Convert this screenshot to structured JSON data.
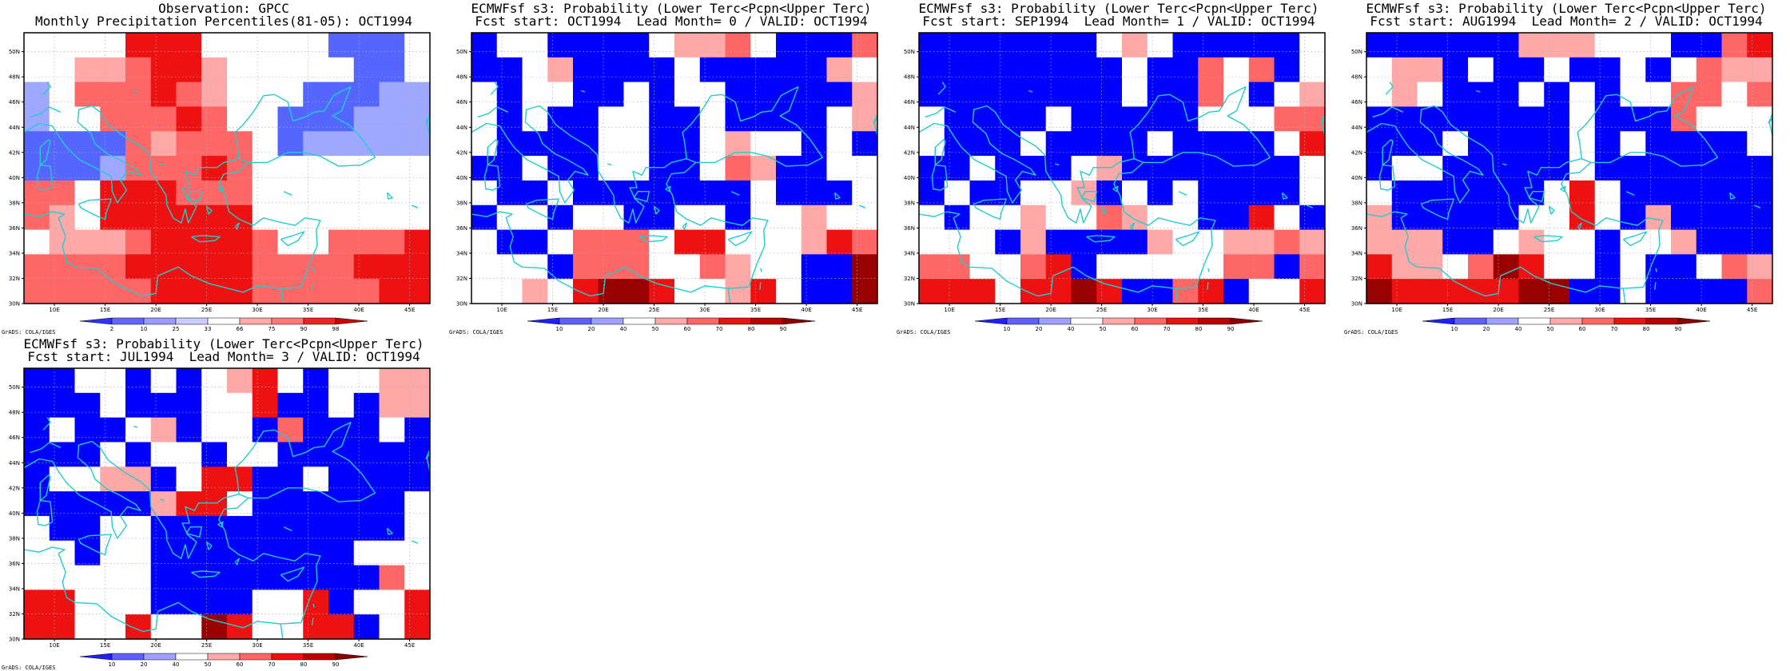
{
  "credit": "GrADS: COLA/IGES",
  "lon_labels": [
    "10E",
    "15E",
    "20E",
    "25E",
    "30E",
    "35E",
    "40E",
    "45E"
  ],
  "lat_labels": [
    "30N",
    "32N",
    "34N",
    "36N",
    "38N",
    "40N",
    "42N",
    "44N",
    "46N",
    "48N",
    "50N"
  ],
  "colorbars": {
    "obs": {
      "labels": [
        "2",
        "10",
        "25",
        "33",
        "66",
        "75",
        "90",
        "98"
      ],
      "colors": [
        "#3333ff",
        "#6666ff",
        "#9999ff",
        "#ccccff",
        "#ffffff",
        "#ffaaaa",
        "#ff7777",
        "#ee2222",
        "#cc0000"
      ]
    },
    "fcst": {
      "labels": [
        "10",
        "20",
        "40",
        "50",
        "60",
        "70",
        "80",
        "90"
      ],
      "colors": [
        "#2020ff",
        "#6060ff",
        "#a0a0ff",
        "#ffffff",
        "#ffaaaa",
        "#ff6666",
        "#ee1111",
        "#bb0000",
        "#880000"
      ]
    }
  },
  "palette": {
    "B": "#0000ff",
    "b": "#5566ff",
    "v": "#9fa8ff",
    "w": "#ffffff",
    "p": "#ffa8a8",
    "r": "#ff6666",
    "R": "#ee1111",
    "D": "#990000"
  },
  "panels": [
    {
      "title1": "Observation: GPCC",
      "title2": "Monthly Precipitation Percentiles(81-05): OCT1994",
      "colorbar": "obs",
      "grid": [
        "wwwwRRRwwwwwbbbw",
        "wwpprRRpwwwwwbbw",
        "vwrrrRrpwwwbbbvv",
        "vwwrrrRrwwbbbvvv",
        "bbbbrprrrwbvvvvv",
        "bbbvrrrRrwwwwwww",
        "rrwRRRrrrwwwwwww",
        "rpwRRRRRRwwwwwww",
        "wppprRRRRrwwrrrR",
        "rrrrRRRRRrrrrRRR",
        "rrrrrRRRRrrrrrRR"
      ]
    },
    {
      "title1": "ECMWFsf s3: Probability (Lower Terc<Pcpn<Upper Terc)",
      "title2": "Fcst start: OCT1994  Lead Month= 0 / VALID: OCT1994",
      "colorbar": "fcst",
      "grid": [
        "BwwBBBBwpprwBBBr",
        "BBwpBBBBwBBBBBpw",
        "wBwwBBwBwwBBBBBp",
        "wBwBBwwBBwBBBBwp",
        "wBBBBwwBBwpwwBwB",
        "BBwBBwwBBwrpBBww",
        "wBBwBBBBBBBwBBBw",
        "BwwBwwBBwwBwwpww",
        "wBBwrrrwRRwwwpRr",
        "wwwBrrrwwrpwwBBD",
        "wwpwRDDRwwpRwBBD"
      ]
    },
    {
      "title1": "ECMWFsf s3: Probability (Lower Terc<Pcpn<Upper Terc)",
      "title2": "Fcst start: SEP1994  Lead Month= 1 / VALID: OCT1994",
      "colorbar": "fcst",
      "grid": [
        "BBBBBBBwpwBBBBBw",
        "BBBBBBBBwBBrwrBw",
        "BBBBBBBBwBBrwBwp",
        "wBBBBwBBBBBwwwrr",
        "wBBBwBBBBwBBBBwR",
        "BBwBBBwpBBBBBBBw",
        "BwBBwwpBwBwBBBBw",
        "wBwwpwwrpwwBBRwB",
        "wwwBpBBBBpwwpprp",
        "rrwwrRBwwwwwrrBr",
        "RRRwRRDRBBrRBwwR"
      ]
    },
    {
      "title1": "ECMWFsf s3: Probability (Lower Terc<Pcpn<Upper Terc)",
      "title2": "Fcst start: AUG1994  Lead Month= 2 / VALID: OCT1994",
      "colorbar": "fcst",
      "grid": [
        "BBBBBBpppwwwBBrR",
        "wppBwBBwBBwBwrpp",
        "wpwBBBwBwBwwrrwr",
        "BBBBBBBBwBBBrwww",
        "BBBwBBBBwBwBBBBw",
        "BwwBBBBBwBBBBBBB",
        "wBBBBBBwRwBBBBBB",
        "pBBBBBwwRwBpBBBB",
        "pppBBwpwwBwwpBBB",
        "RppwrDRwwBwBBwrp",
        "DRRRRRDDBBwBBBBr"
      ]
    },
    {
      "title1": "ECMWFsf s3: Probability (Lower Terc<Pcpn<Upper Terc)",
      "title2": "Fcst start: JUL1994  Lead Month= 3 / VALID: OCT1994",
      "colorbar": "fcst",
      "grid": [
        "BBwwBwBwpRwBwwpp",
        "BBBwBBBwwRBBwBpp",
        "BwBBwpBwwBrBBBwB",
        "BBBwBwwBwwBBBBBB",
        "BwwppBwRRBBwBBBB",
        "BBBBBpRRwBBBBBBw",
        "wBBwwBBBBBBBBBBw",
        "wwBwwBBBBBBBBwww",
        "wwwwwBBBBBBBBBrw",
        "RRwwwBBBBwwRBwwR",
        "RRwwRwwDRwwRRBwR"
      ]
    }
  ]
}
